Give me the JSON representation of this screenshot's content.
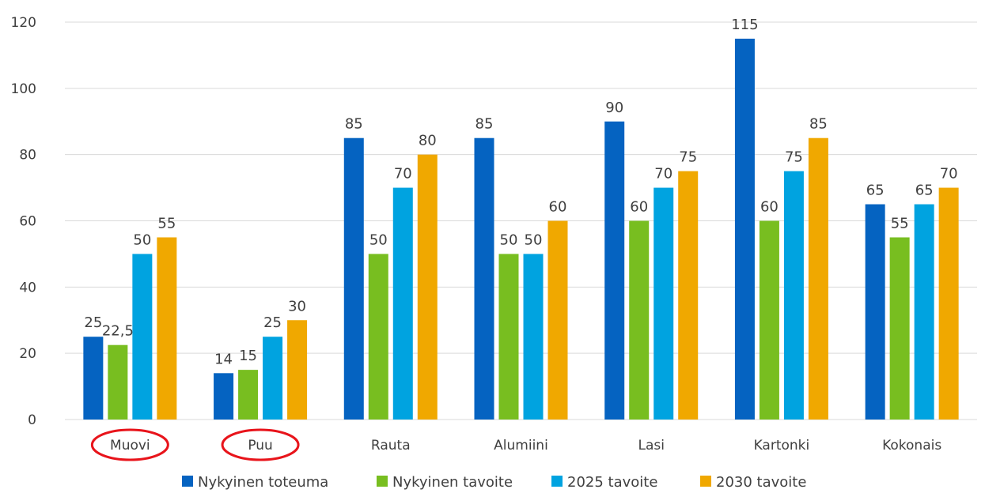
{
  "chart_data": {
    "type": "bar",
    "categories": [
      "Muovi",
      "Puu",
      "Rauta",
      "Alumiini",
      "Lasi",
      "Kartonki",
      "Kokonais"
    ],
    "series": [
      {
        "name": "Nykyinen toteuma",
        "color": "#0563c1",
        "values": [
          25,
          14,
          85,
          85,
          90,
          115,
          65
        ],
        "labels": [
          "25",
          "14",
          "85",
          "85",
          "90",
          "115",
          "65"
        ]
      },
      {
        "name": "Nykyinen tavoite",
        "color": "#78be20",
        "values": [
          22.5,
          15,
          50,
          50,
          60,
          60,
          55
        ],
        "labels": [
          "22,5",
          "15",
          "50",
          "50",
          "60",
          "60",
          "55"
        ]
      },
      {
        "name": "2025 tavoite",
        "color": "#00a3e0",
        "values": [
          50,
          25,
          70,
          50,
          70,
          75,
          65
        ],
        "labels": [
          "50",
          "25",
          "70",
          "50",
          "70",
          "75",
          "65"
        ]
      },
      {
        "name": "2030 tavoite",
        "color": "#f0a800",
        "values": [
          55,
          30,
          80,
          60,
          75,
          85,
          70
        ],
        "labels": [
          "55",
          "30",
          "80",
          "60",
          "75",
          "85",
          "70"
        ]
      }
    ],
    "yticks": [
      "0",
      "20",
      "40",
      "60",
      "80",
      "100",
      "120"
    ],
    "ylim": [
      0,
      120
    ],
    "grid": true,
    "legend_position": "bottom",
    "highlighted_categories": [
      "Muovi",
      "Puu"
    ],
    "highlight_color": "#e8141b"
  }
}
